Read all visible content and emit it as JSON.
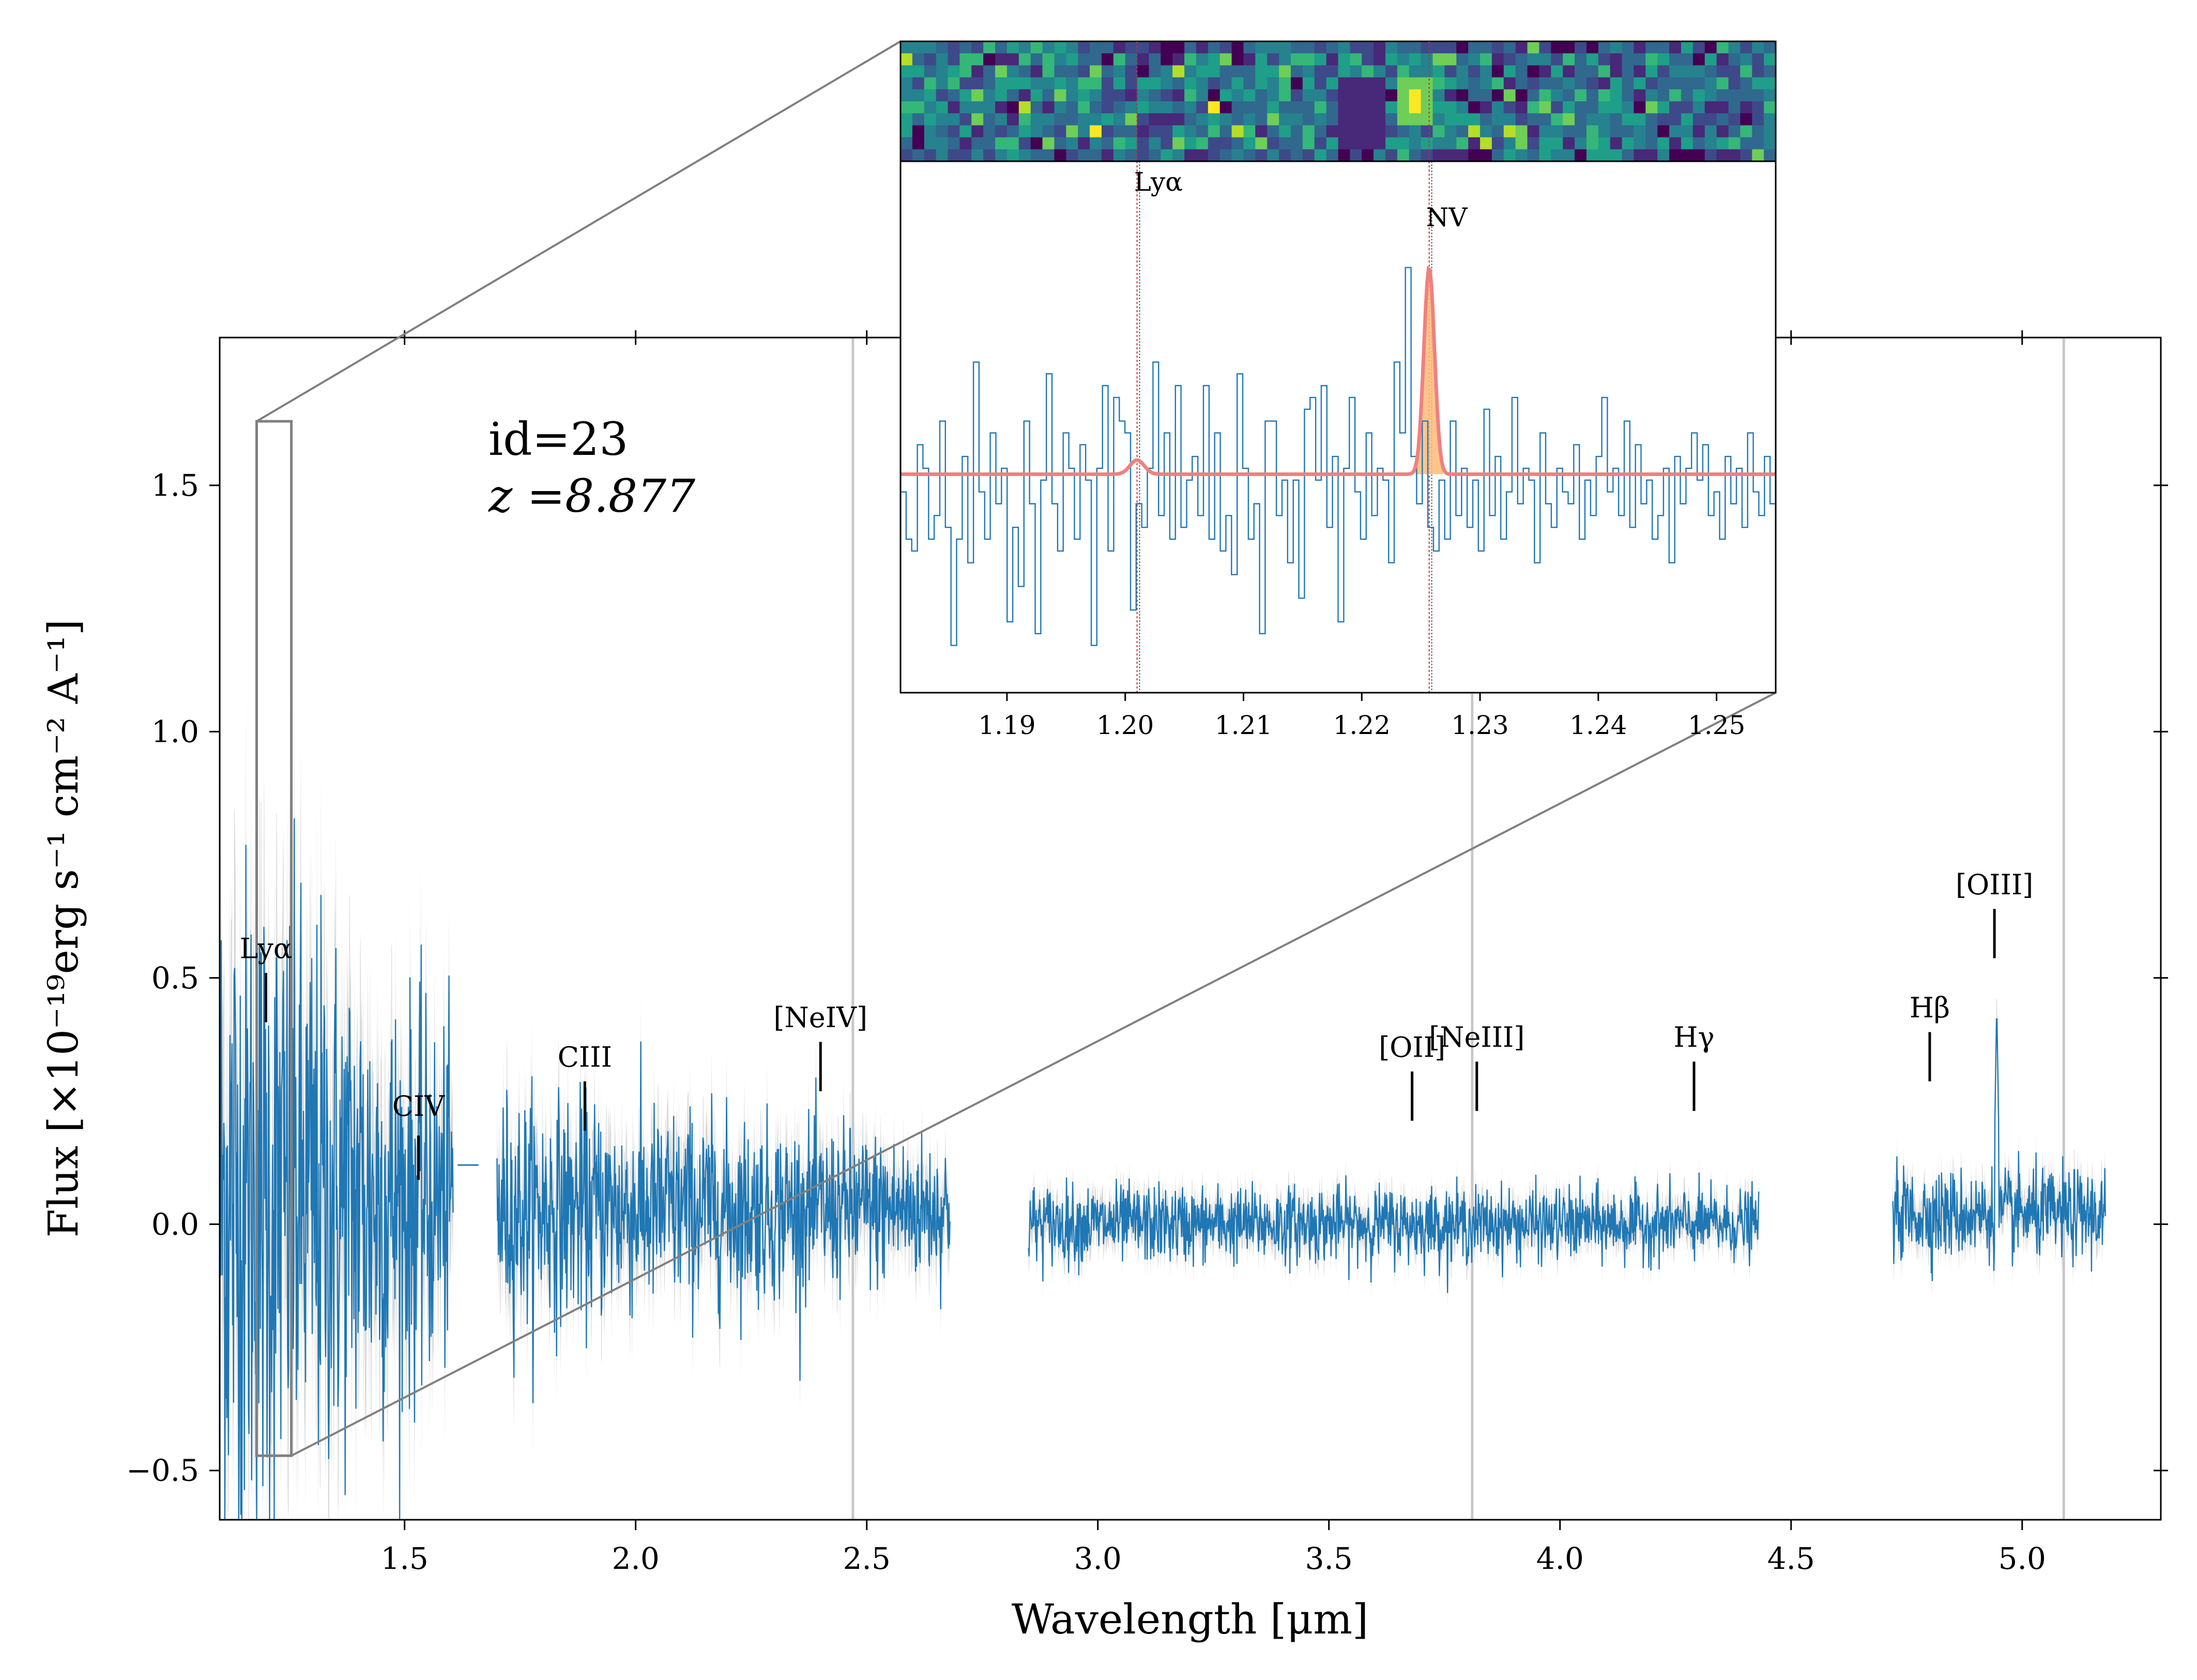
{
  "chart_data": [
    {
      "type": "line",
      "role": "main-spectrum",
      "annotation": {
        "id_text": "id=23",
        "z_text": "z =8.877"
      },
      "xlabel": "Wavelength [μm]",
      "ylabel": "Flux [×10⁻¹⁹erg s⁻¹ cm⁻² A⁻¹]",
      "xlim": [
        1.1,
        5.3
      ],
      "ylim": [
        -0.6,
        1.8
      ],
      "xticks": [
        1.5,
        2.0,
        2.5,
        3.0,
        3.5,
        4.0,
        4.5,
        5.0
      ],
      "xtick_labels": [
        "1.5",
        "2.0",
        "2.5",
        "3.0",
        "3.5",
        "4.0",
        "4.5",
        "5.0"
      ],
      "yticks": [
        -0.5,
        0.0,
        0.5,
        1.0,
        1.5
      ],
      "ytick_labels": [
        "−0.5",
        "0.0",
        "0.5",
        "1.0",
        "1.5"
      ],
      "segments": [
        {
          "x_start": 1.1,
          "x_end": 1.605,
          "noise_sigma_start": 0.38,
          "noise_sigma_end": 0.16,
          "baseline": 0.05
        },
        {
          "x_start": 1.7,
          "x_end": 2.68,
          "noise_sigma_start": 0.12,
          "noise_sigma_end": 0.07,
          "baseline": 0.03
        },
        {
          "x_start": 2.85,
          "x_end": 4.43,
          "noise_sigma_start": 0.04,
          "noise_sigma_end": 0.035,
          "baseline": 0.0
        },
        {
          "x_start": 4.72,
          "x_end": 5.18,
          "noise_sigma_start": 0.045,
          "noise_sigma_end": 0.045,
          "baseline": 0.02
        }
      ],
      "flat_piece": {
        "x_start": 1.615,
        "x_end": 1.66,
        "y": 0.12
      },
      "emission_spike": {
        "x": 4.945,
        "y": 0.45
      },
      "vertical_lines_x": [
        2.47,
        3.81,
        5.09
      ],
      "zoom_box": {
        "x_min": 1.18,
        "x_max": 1.255,
        "y_min": -0.47,
        "y_max": 1.63
      },
      "line_markers": [
        {
          "label": "Lyα",
          "x": 1.2,
          "tick_y_bottom": 0.41,
          "tick_y_top": 0.51,
          "label_y": 0.54
        },
        {
          "label": "CIV",
          "x": 1.53,
          "tick_y_bottom": 0.09,
          "tick_y_top": 0.18,
          "label_y": 0.22
        },
        {
          "label": "CIII",
          "x": 1.89,
          "tick_y_bottom": 0.19,
          "tick_y_top": 0.29,
          "label_y": 0.32
        },
        {
          "label": "[NeIV]",
          "x": 2.4,
          "tick_y_bottom": 0.27,
          "tick_y_top": 0.37,
          "label_y": 0.4
        },
        {
          "label": "[OII]",
          "x": 3.68,
          "tick_y_bottom": 0.21,
          "tick_y_top": 0.31,
          "label_y": 0.34
        },
        {
          "label": "[NeIII]",
          "x": 3.82,
          "tick_y_bottom": 0.23,
          "tick_y_top": 0.33,
          "label_y": 0.36
        },
        {
          "label": "Hγ",
          "x": 4.29,
          "tick_y_bottom": 0.23,
          "tick_y_top": 0.33,
          "label_y": 0.36
        },
        {
          "label": "Hβ",
          "x": 4.8,
          "tick_y_bottom": 0.29,
          "tick_y_top": 0.39,
          "label_y": 0.42
        },
        {
          "label": "[OIII]",
          "x": 4.94,
          "tick_y_bottom": 0.54,
          "tick_y_top": 0.64,
          "label_y": 0.67
        }
      ],
      "colors": {
        "spectrum": "#1f77b4",
        "error": "#c8c8c8",
        "vline": "#c8c8c8",
        "marker": "#000000",
        "zoom": "#808080"
      }
    },
    {
      "type": "line",
      "role": "inset-zoom",
      "xlim": [
        1.181,
        1.255
      ],
      "ylim": [
        -1.0,
        3.5
      ],
      "xticks": [
        1.19,
        1.2,
        1.21,
        1.22,
        1.23,
        1.24,
        1.25
      ],
      "xtick_labels": [
        "1.19",
        "1.20",
        "1.21",
        "1.22",
        "1.23",
        "1.24",
        "1.25"
      ],
      "lines": [
        {
          "label": "Lyα",
          "x": 1.201,
          "label_y": 3.25
        },
        {
          "label": "NV",
          "x": 1.2257,
          "label_y": 2.95
        }
      ],
      "step_spectrum": [
        0.7,
        0.3,
        0.2,
        1.1,
        0.9,
        0.3,
        0.5,
        1.3,
        0.4,
        -0.6,
        0.3,
        1.0,
        0.1,
        1.8,
        0.7,
        0.3,
        1.2,
        0.6,
        0.9,
        -0.4,
        0.4,
        -0.1,
        1.3,
        0.6,
        -0.5,
        0.8,
        1.7,
        0.6,
        0.2,
        1.2,
        0.9,
        0.3,
        1.1,
        0.8,
        -0.6,
        0.9,
        1.6,
        0.2,
        1.5,
        1.3,
        1.2,
        -0.3,
        0.6,
        0.4,
        0.9,
        1.8,
        0.5,
        1.2,
        0.3,
        1.6,
        0.4,
        0.8,
        1.0,
        0.5,
        1.6,
        0.3,
        1.2,
        0.2,
        0.5,
        0.0,
        1.7,
        0.9,
        0.3,
        0.6,
        -0.5,
        1.3,
        1.3,
        0.5,
        0.8,
        0.1,
        0.8,
        -0.2,
        1.4,
        1.5,
        0.8,
        1.6,
        0.4,
        1.0,
        -0.4,
        0.9,
        1.5,
        0.7,
        0.3,
        1.2,
        0.5,
        0.9,
        0.8,
        0.1,
        1.8,
        1.2,
        2.6,
        1.0,
        0.6,
        1.3,
        0.4,
        0.2,
        0.8,
        0.3,
        1.3,
        0.5,
        0.9,
        0.4,
        0.8,
        0.2,
        1.4,
        0.5,
        1.0,
        0.3,
        0.7,
        1.5,
        0.6,
        0.9,
        0.8,
        0.1,
        1.2,
        0.6,
        0.4,
        0.9,
        0.7,
        0.6,
        1.1,
        0.3,
        0.8,
        0.5,
        1.0,
        1.5,
        0.7,
        0.9,
        0.5,
        1.3,
        0.4,
        1.1,
        0.6,
        0.8,
        0.3,
        0.5,
        0.9,
        0.1,
        1.0,
        0.6,
        0.9,
        1.2,
        0.8,
        1.1,
        0.5,
        0.7,
        0.3,
        1.0,
        0.6,
        0.9,
        0.4,
        1.2,
        0.7,
        0.5,
        1.0,
        0.6
      ],
      "model": {
        "continuum": 0.85,
        "lya_amp": 0.12,
        "lya_sigma": 0.0006,
        "nv_amp": 1.75,
        "nv_sigma": 0.00045
      },
      "colors": {
        "spectrum": "#1f77b4",
        "model": "#f08080",
        "fill": "#ffbb78",
        "marker": "#d62728"
      }
    }
  ],
  "image_2d": {
    "colormap": "viridis",
    "rows": 10,
    "cols": 74,
    "bright_spot_col": 43,
    "bright_spot_rows": [
      4,
      5
    ]
  }
}
